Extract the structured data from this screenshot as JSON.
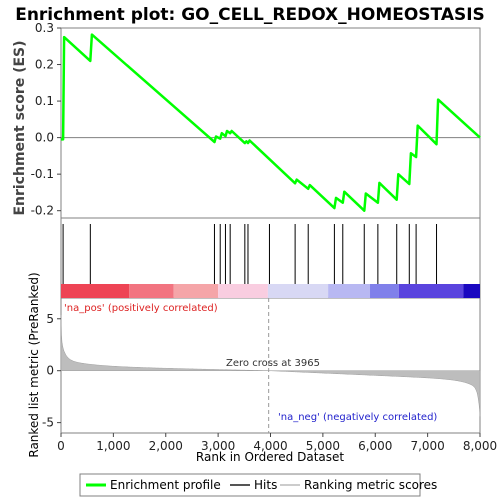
{
  "chart_data": {
    "type": "line",
    "title": "Enrichment plot: GO_CELL_REDOX_HOMEOSTASIS",
    "top_panel": {
      "ylabel": "Enrichment score (ES)",
      "ylim": [
        -0.22,
        0.3
      ],
      "yticks": [
        -0.2,
        -0.1,
        0.0,
        0.1,
        0.2,
        0.3
      ],
      "ytick_labels": [
        "-0.2",
        "-0.1",
        "0.0",
        "0.1",
        "0.2",
        "0.3"
      ],
      "series": [
        {
          "name": "Enrichment profile",
          "color": "#00ff00",
          "x": [
            0,
            40,
            60,
            560,
            590,
            2930,
            2960,
            3040,
            3070,
            3140,
            3170,
            3230,
            3260,
            3510,
            3540,
            3570,
            3600,
            4470,
            4500,
            4720,
            4750,
            5220,
            5250,
            5380,
            5410,
            5790,
            5820,
            6050,
            6080,
            6410,
            6440,
            6650,
            6680,
            6780,
            6810,
            7170,
            7200,
            8000
          ],
          "y": [
            -0.005,
            -0.005,
            0.275,
            0.21,
            0.282,
            -0.012,
            0.003,
            -0.003,
            0.012,
            0.004,
            0.018,
            0.012,
            0.018,
            -0.015,
            -0.01,
            -0.015,
            -0.008,
            -0.125,
            -0.115,
            -0.14,
            -0.13,
            -0.193,
            -0.165,
            -0.178,
            -0.148,
            -0.2,
            -0.153,
            -0.178,
            -0.124,
            -0.17,
            -0.1,
            -0.127,
            -0.043,
            -0.053,
            0.033,
            -0.018,
            0.104,
            0.0
          ]
        }
      ],
      "hits_x": [
        40,
        560,
        2930,
        3040,
        3140,
        3230,
        3510,
        3570,
        3980,
        4470,
        4720,
        5220,
        5380,
        5790,
        6050,
        6410,
        6650,
        6780,
        7170
      ]
    },
    "ranked_panel": {
      "ylabel": "Ranked list metric (PreRanked)",
      "ylim": [
        -6,
        7
      ],
      "yticks": [
        -5,
        0,
        5
      ],
      "ytick_labels": [
        "-5",
        "0",
        "5"
      ],
      "zero_cross": 3965,
      "zero_cross_label": "Zero cross at 3965",
      "pos_label": "'na_pos' (positively correlated)",
      "neg_label": "'na_neg' (negatively correlated)",
      "fill_color": "#bdbdbd"
    },
    "color_bar": [
      {
        "from": 0,
        "to": 1300,
        "color": "#ee4455"
      },
      {
        "from": 1300,
        "to": 2150,
        "color": "#f27480"
      },
      {
        "from": 2150,
        "to": 3000,
        "color": "#f5a5a8"
      },
      {
        "from": 3000,
        "to": 3950,
        "color": "#f9cde0"
      },
      {
        "from": 3950,
        "to": 5100,
        "color": "#d8d8f4"
      },
      {
        "from": 5100,
        "to": 5900,
        "color": "#b8b8f2"
      },
      {
        "from": 5900,
        "to": 6450,
        "color": "#8080ea"
      },
      {
        "from": 6450,
        "to": 7680,
        "color": "#5a44de"
      },
      {
        "from": 7680,
        "to": 8000,
        "color": "#1a08c0"
      }
    ],
    "xaxis": {
      "xlabel": "Rank in Ordered Dataset",
      "xlim": [
        0,
        8000
      ],
      "xticks": [
        0,
        1000,
        2000,
        3000,
        4000,
        5000,
        6000,
        7000,
        8000
      ],
      "xtick_labels": [
        "0",
        "1,000",
        "2,000",
        "3,000",
        "4,000",
        "5,000",
        "6,000",
        "7,000",
        "8,000"
      ]
    },
    "legend": {
      "placement": "bottom",
      "items": [
        {
          "label": "Enrichment profile",
          "color": "#00ff00"
        },
        {
          "label": "Hits",
          "color": "#000000"
        },
        {
          "label": "Ranking metric scores",
          "color": "#bdbdbd"
        }
      ]
    }
  }
}
